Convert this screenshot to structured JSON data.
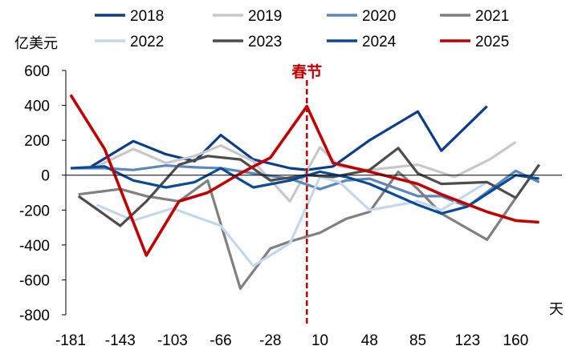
{
  "chart_data": {
    "type": "line",
    "title": "",
    "ylabel": "亿美元",
    "xlabel": "天",
    "ylim": [
      -800,
      600
    ],
    "xlim": [
      -181,
      188
    ],
    "yticks": [
      -800,
      -600,
      -400,
      -200,
      0,
      200,
      400,
      600
    ],
    "xticks": [
      -181,
      -143,
      -103,
      -66,
      -28,
      10,
      48,
      85,
      123,
      160
    ],
    "grid": false,
    "legend_position": "top",
    "annotation": {
      "label": "春节",
      "x": 0,
      "color": "#c00000"
    },
    "series": [
      {
        "name": "2018",
        "color": "#0b3d8c",
        "x": [
          -165,
          -133,
          -108,
          -86,
          -66,
          -41,
          -13,
          0,
          20,
          48,
          85,
          103,
          138
        ],
        "y": [
          50,
          195,
          120,
          80,
          230,
          90,
          40,
          30,
          50,
          200,
          365,
          140,
          395
        ]
      },
      {
        "name": "2019",
        "color": "#c8c8c8",
        "x": [
          -161,
          -133,
          -108,
          -86,
          -66,
          -41,
          -13,
          10,
          25,
          48,
          85,
          113,
          140,
          160
        ],
        "y": [
          50,
          150,
          70,
          110,
          170,
          80,
          -150,
          160,
          50,
          30,
          60,
          -10,
          90,
          190
        ]
      },
      {
        "name": "2020",
        "color": "#5b87c0",
        "x": [
          -181,
          -155,
          -133,
          -108,
          -86,
          -66,
          -41,
          -13,
          10,
          30,
          48,
          85,
          103,
          123,
          160,
          178
        ],
        "y": [
          40,
          40,
          30,
          55,
          45,
          40,
          10,
          -20,
          -80,
          -30,
          -20,
          -120,
          -120,
          -180,
          25,
          -40
        ]
      },
      {
        "name": "2021",
        "color": "#808080",
        "x": [
          -175,
          -143,
          -123,
          -98,
          -76,
          -51,
          -28,
          -13,
          10,
          30,
          48,
          70,
          85,
          103,
          138,
          160
        ],
        "y": [
          -110,
          -80,
          -120,
          -150,
          -30,
          -650,
          -420,
          -380,
          -330,
          -250,
          -210,
          20,
          -80,
          -220,
          -370,
          -130
        ]
      },
      {
        "name": "2022",
        "color": "#c5d7ee",
        "x": [
          -161,
          -133,
          -103,
          -66,
          -41,
          -13,
          10,
          25,
          48,
          85,
          103,
          138
        ],
        "y": [
          -170,
          -260,
          -190,
          -290,
          -520,
          -390,
          -10,
          -40,
          -200,
          -150,
          -200,
          -40
        ]
      },
      {
        "name": "2023",
        "color": "#4d4d4d",
        "x": [
          -175,
          -143,
          -123,
          -98,
          -76,
          -51,
          -28,
          0,
          20,
          48,
          70,
          85,
          103,
          138,
          160,
          178
        ],
        "y": [
          -120,
          -290,
          -150,
          60,
          110,
          90,
          -30,
          0,
          -10,
          30,
          155,
          10,
          -50,
          -40,
          -130,
          60
        ]
      },
      {
        "name": "2024",
        "color": "#0b4a96",
        "x": [
          -181,
          -155,
          -133,
          -108,
          -86,
          -66,
          -41,
          -13,
          10,
          30,
          48,
          85,
          103,
          123,
          160,
          178
        ],
        "y": [
          40,
          50,
          -30,
          -70,
          -40,
          40,
          -70,
          -30,
          20,
          -10,
          -50,
          -170,
          -220,
          -180,
          0,
          -20
        ]
      },
      {
        "name": "2025",
        "color": "#c00000",
        "x": [
          -181,
          -155,
          -123,
          -98,
          -76,
          -51,
          -28,
          0,
          20,
          48,
          85,
          103,
          138,
          160,
          178
        ],
        "y": [
          460,
          150,
          -460,
          -150,
          -100,
          10,
          100,
          395,
          70,
          20,
          -50,
          -110,
          -210,
          -260,
          -270
        ]
      }
    ]
  }
}
